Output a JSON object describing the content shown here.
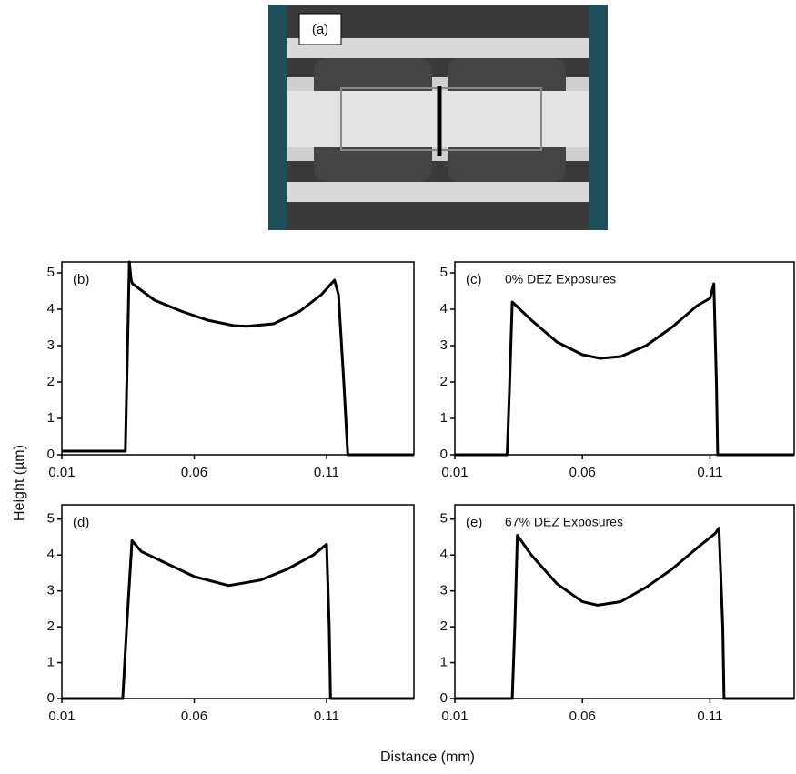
{
  "figure": {
    "image_label": "(a)",
    "ylabel": "Height (µm)",
    "xlabel": "Distance (mm)"
  },
  "chart_data": [
    {
      "type": "line",
      "panel_label": "(b)",
      "x": [
        0.01,
        0.034,
        0.0355,
        0.0362,
        0.0367,
        0.045,
        0.055,
        0.065,
        0.075,
        0.08,
        0.09,
        0.1,
        0.108,
        0.113,
        0.1145,
        0.1165,
        0.118,
        0.143
      ],
      "series": [
        {
          "color": "#000000",
          "values": [
            0.1,
            0.1,
            5.3,
            4.8,
            4.7,
            4.25,
            3.95,
            3.7,
            3.55,
            3.53,
            3.6,
            3.95,
            4.4,
            4.8,
            4.4,
            2.0,
            0,
            0
          ]
        }
      ],
      "xlim": [
        0.01,
        0.143
      ],
      "ylim": [
        0,
        5.3
      ],
      "xticks": [
        0.01,
        0.06,
        0.11
      ],
      "yticks": [
        0,
        1,
        2,
        3,
        4,
        5
      ]
    },
    {
      "type": "line",
      "panel_label": "(c)",
      "annotation": "0% DEZ Exposures",
      "x": [
        0.01,
        0.0305,
        0.0315,
        0.0325,
        0.04,
        0.05,
        0.06,
        0.067,
        0.075,
        0.085,
        0.095,
        0.105,
        0.11,
        0.1115,
        0.1125,
        0.113,
        0.143
      ],
      "series": [
        {
          "color": "#000000",
          "values": [
            0,
            0,
            2,
            4.2,
            3.7,
            3.1,
            2.75,
            2.65,
            2.7,
            3.0,
            3.5,
            4.1,
            4.3,
            4.7,
            2.0,
            0,
            0
          ]
        }
      ],
      "xlim": [
        0.01,
        0.143
      ],
      "ylim": [
        0,
        5.3
      ],
      "xticks": [
        0.01,
        0.06,
        0.11
      ],
      "yticks": [
        0,
        1,
        2,
        3,
        4,
        5
      ]
    },
    {
      "type": "line",
      "panel_label": "(d)",
      "x": [
        0.01,
        0.033,
        0.0345,
        0.0365,
        0.04,
        0.05,
        0.06,
        0.073,
        0.085,
        0.095,
        0.105,
        0.11,
        0.111,
        0.1115,
        0.143
      ],
      "series": [
        {
          "color": "#000000",
          "values": [
            0,
            0,
            2,
            4.4,
            4.1,
            3.75,
            3.4,
            3.15,
            3.3,
            3.6,
            4.0,
            4.3,
            2,
            0,
            0
          ]
        }
      ],
      "xlim": [
        0.01,
        0.143
      ],
      "ylim": [
        0,
        5.4
      ],
      "xticks": [
        0.01,
        0.06,
        0.11
      ],
      "yticks": [
        0,
        1,
        2,
        3,
        4,
        5
      ]
    },
    {
      "type": "line",
      "panel_label": "(e)",
      "annotation": "67% DEZ Exposures",
      "x": [
        0.01,
        0.0325,
        0.0335,
        0.0345,
        0.04,
        0.05,
        0.06,
        0.066,
        0.075,
        0.085,
        0.095,
        0.105,
        0.112,
        0.1135,
        0.115,
        0.1155,
        0.143
      ],
      "series": [
        {
          "color": "#000000",
          "values": [
            0,
            0,
            2,
            4.55,
            4.0,
            3.2,
            2.7,
            2.6,
            2.7,
            3.1,
            3.6,
            4.2,
            4.6,
            4.75,
            2,
            0,
            0
          ]
        }
      ],
      "xlim": [
        0.01,
        0.143
      ],
      "ylim": [
        0,
        5.4
      ],
      "xticks": [
        0.01,
        0.06,
        0.11
      ],
      "yticks": [
        0,
        1,
        2,
        3,
        4,
        5
      ]
    }
  ]
}
